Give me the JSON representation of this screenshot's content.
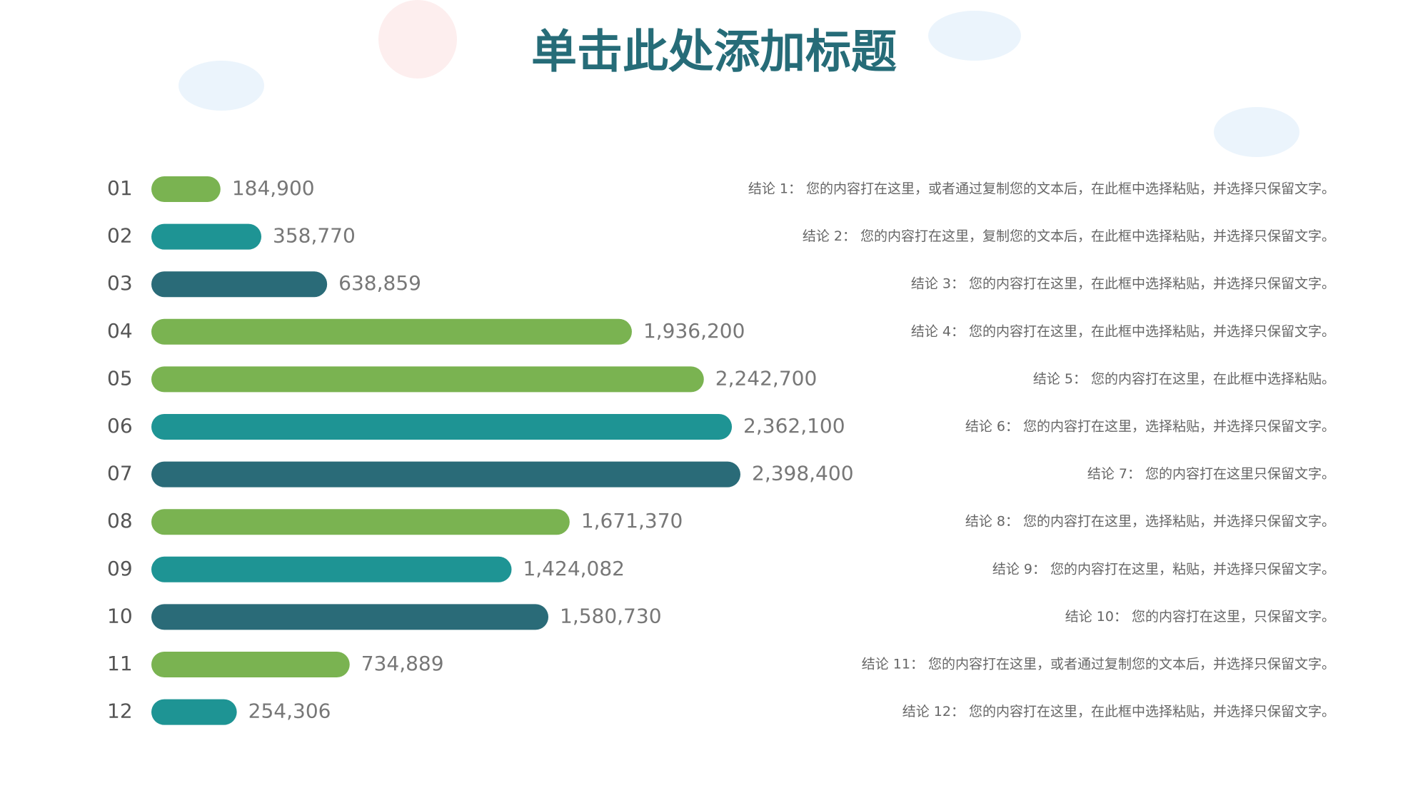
{
  "chart_data": {
    "type": "bar",
    "title": "单击此处添加标题",
    "categories": [
      "01",
      "02",
      "03",
      "04",
      "05",
      "06",
      "07",
      "08",
      "09",
      "10",
      "11",
      "12"
    ],
    "values": [
      184900,
      358770,
      638859,
      1936200,
      2242700,
      2362100,
      2398400,
      1671370,
      1424082,
      1580730,
      734889,
      254306
    ],
    "value_labels": [
      "184,900",
      "358,770",
      "638,859",
      "1,936,200",
      "2,242,700",
      "2,362,100",
      "2,398,400",
      "1,671,370",
      "1,424,082",
      "1,580,730",
      "734,889",
      "254,306"
    ],
    "colors": [
      "#7ab351",
      "#1e9494",
      "#2a6b78",
      "#7ab351",
      "#7ab351",
      "#1e9494",
      "#2a6b78",
      "#7ab351",
      "#1e9494",
      "#2a6b78",
      "#7ab351",
      "#1e9494"
    ]
  },
  "conclusions": [
    "结论 1： 您的内容打在这里，或者通过复制您的文本后，在此框中选择粘贴，并选择只保留文字。",
    "结论 2： 您的内容打在这里，复制您的文本后，在此框中选择粘贴，并选择只保留文字。",
    "结论 3： 您的内容打在这里，在此框中选择粘贴，并选择只保留文字。",
    "结论 4： 您的内容打在这里，在此框中选择粘贴，并选择只保留文字。",
    "结论 5： 您的内容打在这里，在此框中选择粘贴。",
    "结论 6： 您的内容打在这里，选择粘贴，并选择只保留文字。",
    "结论 7： 您的内容打在这里只保留文字。",
    "结论 8： 您的内容打在这里，选择粘贴，并选择只保留文字。",
    "结论 9： 您的内容打在这里，粘贴，并选择只保留文字。",
    "结论 10： 您的内容打在这里，只保留文字。",
    "结论 11： 您的内容打在这里，或者通过复制您的文本后，并选择只保留文字。",
    "结论 12： 您的内容打在这里，在此框中选择粘贴，并选择只保留文字。"
  ]
}
